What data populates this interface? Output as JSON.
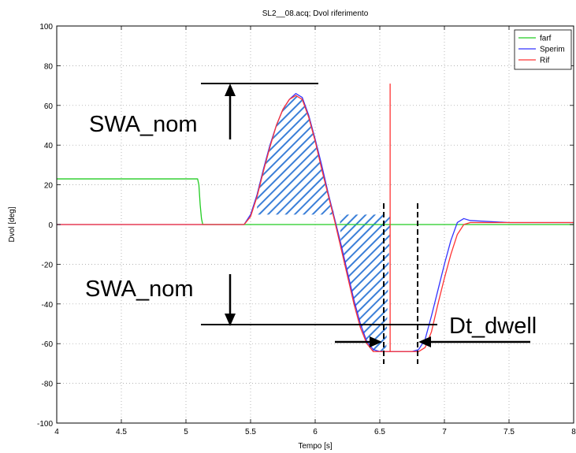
{
  "chart_data": {
    "type": "line",
    "title": "SL2__08.acq; Dvol riferimento",
    "xlabel": "Tempo [s]",
    "ylabel": "Dvol [deg]",
    "xlim": [
      4,
      8
    ],
    "ylim": [
      -100,
      100
    ],
    "xticks": [
      4,
      4.5,
      5,
      5.5,
      6,
      6.5,
      7,
      7.5,
      8
    ],
    "xtick_labels": [
      "4",
      "4.5",
      "5",
      "5.5",
      "6",
      "6.5",
      "7",
      "7.5",
      "8"
    ],
    "yticks": [
      -100,
      -80,
      -60,
      -40,
      -20,
      0,
      20,
      40,
      60,
      80,
      100
    ],
    "ytick_labels": [
      "-100",
      "-80",
      "-60",
      "-40",
      "-20",
      "0",
      "20",
      "40",
      "60",
      "80",
      "100"
    ],
    "grid": true,
    "legend_position": "top-right",
    "series": [
      {
        "name": "farf",
        "color": "#22cc22",
        "x": [
          4.0,
          4.6,
          5.09,
          5.1,
          5.11,
          5.12,
          5.13,
          6.0,
          7.0,
          8.0
        ],
        "y": [
          23,
          23,
          23,
          20,
          10,
          3,
          0,
          0,
          0,
          0
        ]
      },
      {
        "name": "Sperim",
        "color": "#3333ff",
        "x": [
          4.0,
          5.45,
          5.5,
          5.55,
          5.6,
          5.65,
          5.7,
          5.75,
          5.8,
          5.85,
          5.9,
          5.95,
          6.0,
          6.05,
          6.1,
          6.15,
          6.2,
          6.25,
          6.3,
          6.35,
          6.4,
          6.45,
          6.5,
          6.55,
          6.6,
          6.65,
          6.7,
          6.75,
          6.8,
          6.85,
          6.9,
          6.95,
          7.0,
          7.05,
          7.1,
          7.15,
          7.2,
          7.5,
          8.0
        ],
        "y": [
          0,
          0,
          5,
          15,
          28,
          40,
          50,
          58,
          63,
          66,
          64,
          55,
          43,
          30,
          16,
          3,
          -10,
          -24,
          -38,
          -50,
          -59,
          -63,
          -64,
          -64,
          -64,
          -64,
          -64,
          -64,
          -63,
          -58,
          -46,
          -33,
          -20,
          -8,
          1,
          3,
          2,
          1,
          1
        ]
      },
      {
        "name": "Rif",
        "color": "#ff3333",
        "x": [
          4.0,
          5.45,
          5.5,
          5.55,
          5.6,
          5.65,
          5.7,
          5.75,
          5.8,
          5.85,
          5.9,
          5.95,
          6.0,
          6.05,
          6.1,
          6.15,
          6.2,
          6.25,
          6.3,
          6.35,
          6.4,
          6.45,
          6.5,
          6.55,
          6.6,
          6.65,
          6.7,
          6.75,
          6.8,
          6.85,
          6.9,
          6.95,
          7.0,
          7.05,
          7.1,
          7.15,
          7.2,
          7.5,
          8.0
        ],
        "y": [
          0,
          0,
          4,
          14,
          27,
          39,
          50,
          58,
          63,
          65,
          63,
          54,
          42,
          28,
          15,
          2,
          -12,
          -26,
          -40,
          -52,
          -60,
          -64,
          -64,
          -64,
          -64,
          -64,
          -64,
          -64,
          -64,
          -62,
          -54,
          -40,
          -27,
          -15,
          -5,
          0,
          1,
          1,
          1
        ]
      }
    ],
    "spike": {
      "x": 6.58,
      "y_from": -64,
      "y_to": 71,
      "color": "#ff3333"
    },
    "annotations": [
      {
        "name": "swa-nom-top",
        "text": "SWA_nom"
      },
      {
        "name": "swa-nom-bottom",
        "text": "SWA_nom"
      },
      {
        "name": "dt-dwell",
        "text": "Dt_dwell"
      }
    ]
  }
}
